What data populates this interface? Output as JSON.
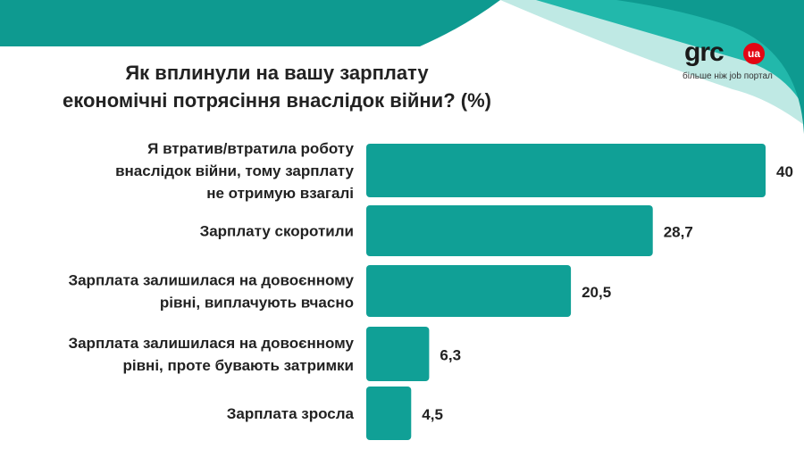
{
  "header": {
    "title_line1": "Як вплинули на вашу зарплату",
    "title_line2": "економічні потрясіння внаслідок війни? (%)"
  },
  "logo": {
    "word": "grc",
    "badge": "ua",
    "tagline": "більше ніж job портал"
  },
  "colors": {
    "bar": "#10a096",
    "header_teal": "#0e9a90",
    "swoosh_light": "#bfe9e4",
    "swoosh_mid": "#22b8ab",
    "logo_badge": "#e30613"
  },
  "chart_data": {
    "type": "bar",
    "orientation": "horizontal",
    "title": "Як вплинули на вашу зарплату економічні потрясіння внаслідок війни? (%)",
    "categories": [
      [
        "Я втратив/втратила роботу",
        "внаслідок війни, тому зарплату",
        "не отримую взагалі"
      ],
      [
        "Зарплату скоротили"
      ],
      [
        "Зарплата залишилася на довоєнному",
        "рівні, виплачують вчасно"
      ],
      [
        "Зарплата залишилася на довоєнному",
        "рівні, проте бувають затримки"
      ],
      [
        "Зарплата зросла"
      ]
    ],
    "values": [
      40,
      28.7,
      20.5,
      6.3,
      4.5
    ],
    "value_labels": [
      "40",
      "28,7",
      "20,5",
      "6,3",
      "4,5"
    ],
    "xlim": [
      0,
      40
    ],
    "grid": false,
    "legend": "none"
  }
}
